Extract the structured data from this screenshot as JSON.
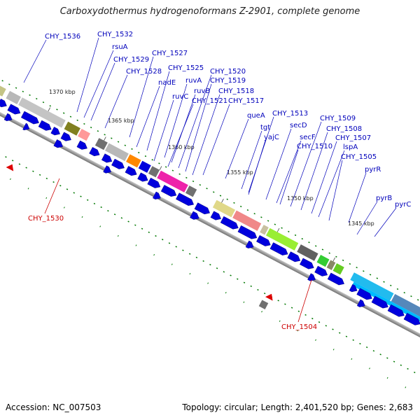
{
  "title": "Carboxydothermus hydrogenoformans Z-2901, complete genome",
  "footer": {
    "accession": "Accession: NC_007503",
    "summary": "Topology: circular; Length: 2,401,520 bp; Genes: 2,683"
  },
  "scale_labels": [
    "1370 kbp",
    "1365 kbp",
    "1360 kbp",
    "1355 kbp",
    "1350 kbp",
    "1345 kbp"
  ],
  "gene_labels": [
    "CHY_1536",
    "CHY_1532",
    "rsuA",
    "CHY_1529",
    "CHY_1527",
    "CHY_1528",
    "CHY_1525",
    "nadE",
    "ruvA",
    "ruvB",
    "ruvC",
    "CHY_1520",
    "CHY_1519",
    "CHY_1518",
    "CHY_1521",
    "CHY_1517",
    "queA",
    "CHY_1513",
    "tgt",
    "secD",
    "yajC",
    "CHY_1509",
    "secF",
    "CHY_1508",
    "CHY_1510",
    "CHY_1507",
    "lspA",
    "CHY_1505",
    "pyrR",
    "pyrB",
    "pyrC"
  ],
  "red_labels": [
    "CHY_1530",
    "CHY_1504"
  ],
  "colors": {
    "gene_arrow": "#0000dd",
    "label_blue": "#0000bb",
    "label_red": "#cc0000",
    "tick_green": "#007700",
    "backbone": "#808080"
  }
}
